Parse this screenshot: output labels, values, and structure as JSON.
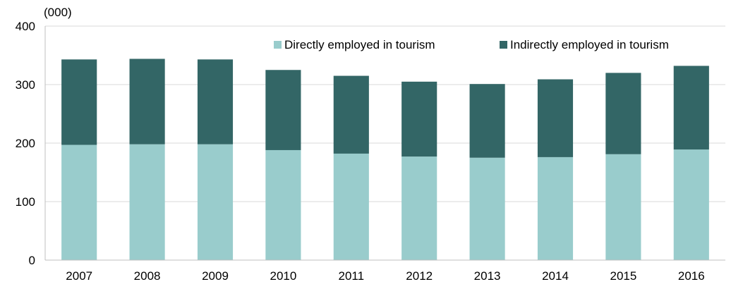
{
  "chart_data": {
    "type": "bar",
    "stacked": true,
    "title": "",
    "xlabel": "",
    "ylabel": "",
    "y_unit": "(000)",
    "categories": [
      "2007",
      "2008",
      "2009",
      "2010",
      "2011",
      "2012",
      "2013",
      "2014",
      "2015",
      "2016"
    ],
    "series": [
      {
        "name": "Directly employed in tourism",
        "color": "#99cccc",
        "values": [
          197,
          198,
          198,
          188,
          182,
          177,
          175,
          176,
          181,
          189
        ]
      },
      {
        "name": "Indirectly employed in tourism",
        "color": "#336666",
        "values": [
          146,
          146,
          145,
          137,
          133,
          128,
          126,
          133,
          139,
          143
        ]
      }
    ],
    "ylim": [
      0,
      400
    ],
    "yticks": [
      "0",
      "100",
      "200",
      "300",
      "400"
    ],
    "grid": true,
    "legend": "top-right"
  }
}
